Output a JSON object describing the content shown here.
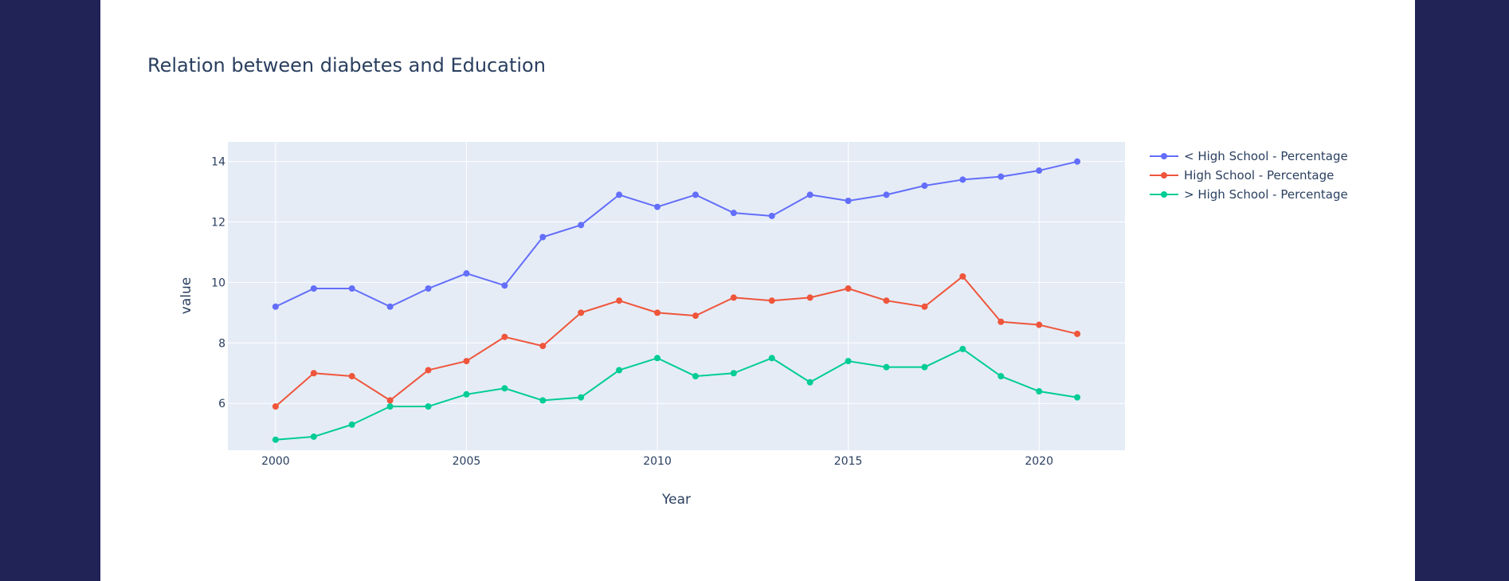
{
  "chart_data": {
    "type": "line",
    "title": "Relation between diabetes and Education",
    "xlabel": "Year",
    "ylabel": "value",
    "xlim": [
      1998.75,
      2022.25
    ],
    "ylim": [
      4.45,
      14.65
    ],
    "x_ticks": [
      2000,
      2005,
      2010,
      2015,
      2020
    ],
    "y_ticks": [
      6,
      8,
      10,
      12,
      14
    ],
    "grid": true,
    "legend_position": "right",
    "x": [
      2000,
      2001,
      2002,
      2003,
      2004,
      2005,
      2006,
      2007,
      2008,
      2009,
      2010,
      2011,
      2012,
      2013,
      2014,
      2015,
      2016,
      2017,
      2018,
      2019,
      2020,
      2021
    ],
    "series": [
      {
        "name": "< High School - Percentage",
        "color": "#636efa",
        "values": [
          9.2,
          9.8,
          9.8,
          9.2,
          9.8,
          10.3,
          9.9,
          11.5,
          11.9,
          12.9,
          12.5,
          12.9,
          12.3,
          12.2,
          12.9,
          12.7,
          12.9,
          13.2,
          13.4,
          13.5,
          13.7,
          14.0
        ]
      },
      {
        "name": "High School - Percentage",
        "color": "#ef553b",
        "values": [
          5.9,
          7.0,
          6.9,
          6.1,
          7.1,
          7.4,
          8.2,
          7.9,
          9.0,
          9.4,
          9.0,
          8.9,
          9.5,
          9.4,
          9.5,
          9.8,
          9.4,
          9.2,
          10.2,
          8.7,
          8.6,
          8.3
        ]
      },
      {
        "name": "> High School - Percentage",
        "color": "#00cc96",
        "values": [
          4.8,
          4.9,
          5.3,
          5.9,
          5.9,
          6.3,
          6.5,
          6.1,
          6.2,
          7.1,
          7.5,
          6.9,
          7.0,
          7.5,
          6.7,
          7.4,
          7.2,
          7.2,
          7.8,
          6.9,
          6.4,
          6.2
        ]
      }
    ]
  }
}
